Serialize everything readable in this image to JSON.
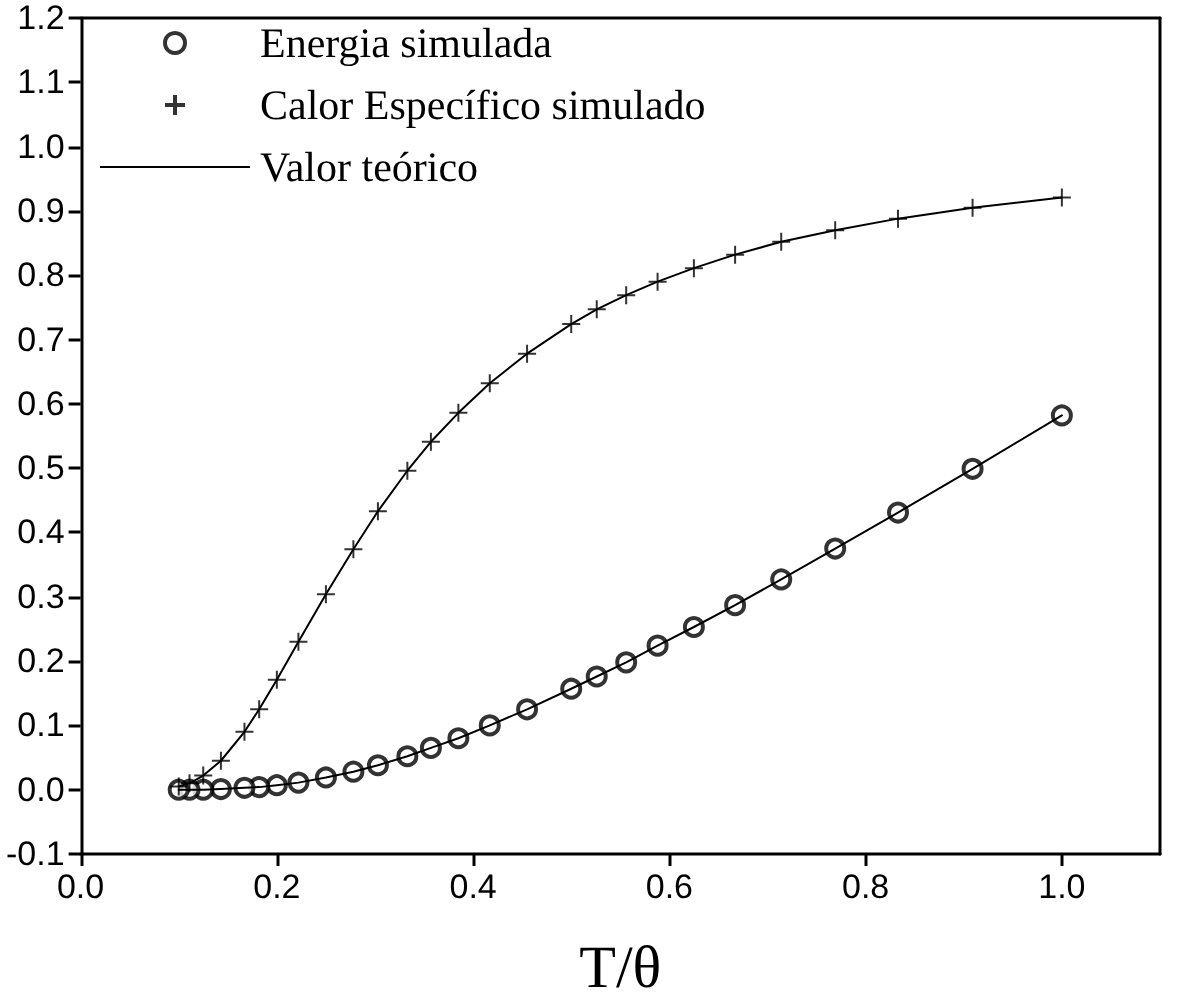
{
  "chart_data": {
    "type": "scatter",
    "xlabel": "T/θ",
    "xlim": [
      0.0,
      1.1
    ],
    "xticks": [
      {
        "value": 0,
        "label": "0.0"
      },
      0.2,
      0.4,
      0.6,
      0.8,
      {
        "value": 1,
        "label": "1.0"
      }
    ],
    "ylim": [
      -0.1,
      1.2
    ],
    "yticks": [
      -0.1,
      {
        "value": 0,
        "label": "0.0"
      },
      0.1,
      0.2,
      0.3,
      0.4,
      0.5,
      0.6,
      0.7,
      0.8,
      0.9,
      {
        "value": 1,
        "label": "1.0"
      },
      1.1,
      1.2
    ],
    "grid": false,
    "legend": "top left",
    "x": [
      1.0,
      0.909,
      0.833,
      0.769,
      0.714,
      0.667,
      0.625,
      0.588,
      0.556,
      0.526,
      0.5,
      0.455,
      0.417,
      0.385,
      0.357,
      0.333,
      0.303,
      0.278,
      0.25,
      0.222,
      0.2,
      0.182,
      0.167,
      0.143,
      0.125,
      0.111,
      0.1
    ],
    "series": [
      {
        "name": "Energia simulada",
        "marker": "circle",
        "color": "#000000",
        "values": [
          0.582,
          0.499,
          0.431,
          0.375,
          0.327,
          0.287,
          0.253,
          0.224,
          0.198,
          0.176,
          0.157,
          0.125,
          0.1,
          0.08,
          0.065,
          0.052,
          0.038,
          0.028,
          0.019,
          0.011,
          0.007,
          0.004,
          0.003,
          0.001,
          0.0,
          0.0,
          0.0
        ]
      },
      {
        "name": "Calor Específico simulado",
        "marker": "cross",
        "color": "#000000",
        "values": [
          0.921,
          0.905,
          0.888,
          0.87,
          0.852,
          0.832,
          0.811,
          0.79,
          0.769,
          0.747,
          0.724,
          0.678,
          0.632,
          0.586,
          0.541,
          0.496,
          0.433,
          0.374,
          0.304,
          0.23,
          0.171,
          0.125,
          0.09,
          0.045,
          0.022,
          0.01,
          0.005
        ]
      },
      {
        "name": "Valor teórico",
        "type": "line",
        "marker": "none",
        "line_style": "solid",
        "color": "#000000",
        "values": [
          0.582,
          0.499,
          0.431,
          0.375,
          0.327,
          0.287,
          0.253,
          0.224,
          0.198,
          0.176,
          0.157,
          0.125,
          0.1,
          0.08,
          0.065,
          0.052,
          0.038,
          0.028,
          0.019,
          0.011,
          0.007,
          0.004,
          0.003,
          0.001,
          0.0,
          0.0,
          0.0
        ]
      },
      {
        "type": "line",
        "marker": "none",
        "line_style": "solid",
        "color": "#000000",
        "values": [
          0.921,
          0.905,
          0.888,
          0.87,
          0.852,
          0.832,
          0.811,
          0.79,
          0.769,
          0.747,
          0.724,
          0.678,
          0.632,
          0.586,
          0.541,
          0.496,
          0.433,
          0.374,
          0.304,
          0.23,
          0.171,
          0.125,
          0.09,
          0.045,
          0.022,
          0.01,
          0.005
        ]
      }
    ]
  }
}
